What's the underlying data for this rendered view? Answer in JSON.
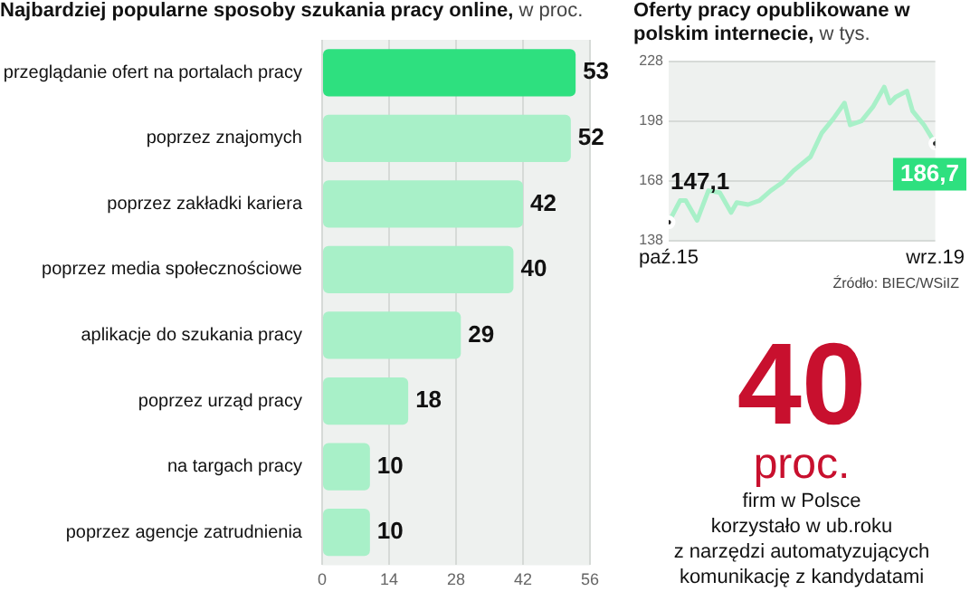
{
  "chart_data": [
    {
      "type": "bar",
      "title": "Najbardziej popularne sposoby szukania pracy online,",
      "subtitle": "w proc.",
      "orientation": "horizontal",
      "categories": [
        "przeglądanie ofert na portalach pracy",
        "poprzez znajomych",
        "poprzez zakładki kariera",
        "poprzez media społecznościowe",
        "aplikacje do szukania pracy",
        "poprzez urząd pracy",
        "na targach pracy",
        "poprzez agencje zatrudnienia"
      ],
      "values": [
        53,
        52,
        42,
        40,
        29,
        18,
        10,
        10
      ],
      "colors": [
        "#2ee07f",
        "#a8f0c8",
        "#a8f0c8",
        "#a8f0c8",
        "#a8f0c8",
        "#a8f0c8",
        "#a8f0c8",
        "#a8f0c8"
      ],
      "xlim": [
        0,
        56
      ],
      "xticks": [
        0,
        14,
        28,
        42,
        56
      ],
      "grid": "x",
      "data_labels": true,
      "legend": false
    },
    {
      "type": "line",
      "title": "Oferty pracy opublikowane w polskim internecie,",
      "subtitle": "w tys.",
      "x": [
        "2015-10",
        "2015-12",
        "2016-01",
        "2016-03",
        "2016-05",
        "2016-07",
        "2016-09",
        "2016-10",
        "2016-12",
        "2017-02",
        "2017-04",
        "2017-06",
        "2017-08",
        "2017-11",
        "2018-01",
        "2018-03",
        "2018-05",
        "2018-06",
        "2018-08",
        "2018-10",
        "2018-12",
        "2019-01",
        "2019-02",
        "2019-04",
        "2019-05",
        "2019-07",
        "2019-09"
      ],
      "series": [
        {
          "color": "#a8f0c8",
          "values": [
            147.1,
            158,
            158,
            148,
            163,
            162,
            152,
            157,
            156,
            158,
            163,
            167,
            173,
            180,
            192,
            199,
            207,
            196,
            198,
            205,
            215,
            207,
            210,
            213,
            203,
            196,
            186.7
          ],
          "value_labels": [
            "147,1",
            null,
            null,
            null,
            null,
            null,
            null,
            null,
            null,
            null,
            null,
            null,
            null,
            null,
            null,
            null,
            null,
            null,
            null,
            null,
            null,
            null,
            null,
            null,
            null,
            null,
            "186,7"
          ]
        }
      ],
      "xlim": [
        "2015-10",
        "2019-09"
      ],
      "xticks": [
        {
          "value": "2015-10",
          "label": "paź.15"
        },
        {
          "value": "2019-09",
          "label": "wrz.19"
        }
      ],
      "ylim": [
        138,
        228
      ],
      "yticks": [
        138,
        168,
        198,
        228
      ],
      "grid": "y",
      "legend": false,
      "annotations": [
        "Źródło: BIEC/WSiIZ"
      ]
    },
    {
      "type": "other",
      "title": "40",
      "subtitle": "proc.",
      "annotations": [
        "firm w Polsce",
        "korzystało w ub.roku",
        "z narzędzi automatyzujących",
        "komunikację z kandydatami"
      ]
    }
  ]
}
